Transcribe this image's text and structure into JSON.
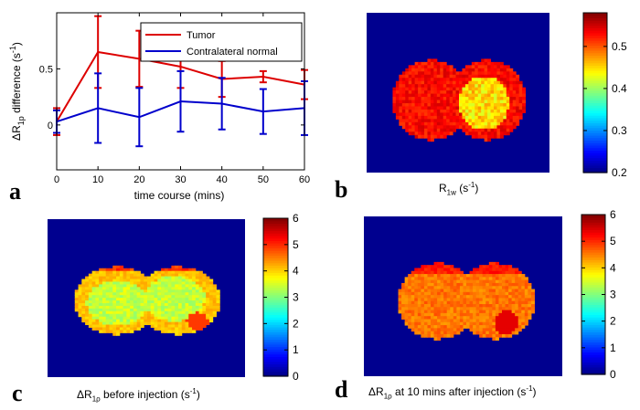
{
  "chart_data": [
    {
      "type": "line",
      "panel": "a",
      "x": [
        0,
        10,
        20,
        30,
        40,
        50,
        60
      ],
      "xlabel": "time course (mins)",
      "ylabel": {
        "prefix": "ΔR",
        "sub": "1p",
        "middle": " difference (s",
        "sup": "-1",
        "suffix": ")"
      },
      "xlim": [
        0,
        60
      ],
      "ylim": [
        -0.4,
        1.0
      ],
      "xticks": [
        0,
        10,
        20,
        30,
        40,
        50,
        60
      ],
      "yticks": [
        0,
        0.5
      ],
      "ytick_labels": [
        "0",
        "0.5"
      ],
      "legend_position": "top-right",
      "series": [
        {
          "name": "Tumor",
          "color": "#dd0000",
          "values": [
            0.03,
            0.65,
            0.59,
            0.52,
            0.41,
            0.43,
            0.36
          ],
          "err_lo": [
            0.12,
            0.32,
            0.25,
            0.19,
            0.16,
            0.05,
            0.13
          ],
          "err_hi": [
            0.12,
            0.32,
            0.25,
            0.19,
            0.16,
            0.05,
            0.13
          ]
        },
        {
          "name": "Contralateral normal",
          "color": "#0000cc",
          "values": [
            0.03,
            0.15,
            0.07,
            0.21,
            0.19,
            0.12,
            0.15
          ],
          "err_lo": [
            0.1,
            0.31,
            0.26,
            0.27,
            0.23,
            0.2,
            0.24
          ],
          "err_hi": [
            0.1,
            0.31,
            0.26,
            0.27,
            0.23,
            0.2,
            0.24
          ]
        }
      ]
    },
    {
      "type": "heatmap",
      "panel": "b",
      "caption": {
        "prefix": "R",
        "sub": "1w",
        "middle": " (s",
        "sup": "-1",
        "suffix": ")"
      },
      "colorbar": {
        "min": 0.2,
        "max": 0.58,
        "ticks": [
          0.2,
          0.3,
          0.4,
          0.5
        ],
        "tick_labels": [
          "0.2",
          "0.3",
          "0.4",
          "0.5"
        ]
      }
    },
    {
      "type": "heatmap",
      "panel": "c",
      "caption": {
        "prefix": "ΔR",
        "sub": "1ρ",
        "middle": " before injection (s",
        "sup": "-1",
        "suffix": ")"
      },
      "colorbar": {
        "min": 0,
        "max": 6,
        "ticks": [
          0,
          1,
          2,
          3,
          4,
          5,
          6
        ],
        "tick_labels": [
          "0",
          "1",
          "2",
          "3",
          "4",
          "5",
          "6"
        ]
      }
    },
    {
      "type": "heatmap",
      "panel": "d",
      "caption": {
        "prefix": "ΔR",
        "sub": "1ρ",
        "middle": " at 10 mins after  injection (s",
        "sup": "-1",
        "suffix": ")"
      },
      "colorbar": {
        "min": 0,
        "max": 6,
        "ticks": [
          0,
          1,
          2,
          3,
          4,
          5,
          6
        ],
        "tick_labels": [
          "0",
          "1",
          "2",
          "3",
          "4",
          "5",
          "6"
        ]
      }
    }
  ],
  "panel_letters": {
    "a": "a",
    "b": "b",
    "c": "c",
    "d": "d"
  }
}
